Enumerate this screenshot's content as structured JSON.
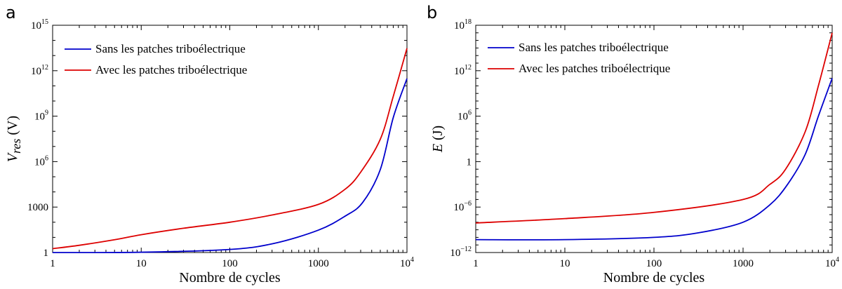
{
  "chart_data": [
    {
      "panel": "a",
      "type": "line",
      "xlabel": "Nombre de cycles",
      "ylabel_main": "V",
      "ylabel_sub": "res",
      "ylabel_unit": "(V)",
      "x_scale": "log",
      "y_scale": "log",
      "xlim": [
        1,
        10000
      ],
      "ylim": [
        1,
        1000000000000000.0
      ],
      "xticks": [
        {
          "value": 1,
          "base": "1",
          "sup": ""
        },
        {
          "value": 10,
          "base": "10",
          "sup": ""
        },
        {
          "value": 100,
          "base": "100",
          "sup": ""
        },
        {
          "value": 1000,
          "base": "1000",
          "sup": ""
        },
        {
          "value": 10000,
          "base": "10",
          "sup": "4"
        }
      ],
      "yticks": [
        {
          "value": 1,
          "base": "1",
          "sup": ""
        },
        {
          "value": 1000,
          "base": "1000",
          "sup": ""
        },
        {
          "value": 1000000.0,
          "base": "10",
          "sup": "6"
        },
        {
          "value": 1000000000.0,
          "base": "10",
          "sup": "9"
        },
        {
          "value": 1000000000000.0,
          "base": "10",
          "sup": "12"
        },
        {
          "value": 1000000000000000.0,
          "base": "10",
          "sup": "15"
        }
      ],
      "legend_position": "top-left",
      "series": [
        {
          "name": "Sans les patches triboélectrique",
          "color": "#0000cc",
          "x": [
            1,
            10,
            100,
            316,
            1000,
            2000,
            3160,
            5000,
            7000,
            10000
          ],
          "y": [
            1.0,
            1.05,
            1.6,
            4,
            30,
            250,
            2000,
            300000.0,
            800000000.0,
            300000000000.0
          ]
        },
        {
          "name": "Avec les patches triboélectrique",
          "color": "#dd0000",
          "x": [
            1,
            2,
            5,
            10,
            30,
            100,
            300,
            1000,
            2000,
            3000,
            5000,
            7000,
            10000
          ],
          "y": [
            1.8,
            3,
            7,
            15,
            40,
            100,
            300,
            1500,
            15000,
            200000.0,
            30000000.0,
            20000000000.0,
            30000000000000.0
          ]
        }
      ]
    },
    {
      "panel": "b",
      "type": "line",
      "xlabel": "Nombre de cycles",
      "ylabel_main": "E",
      "ylabel_sub": "",
      "ylabel_unit": "(J)",
      "x_scale": "log",
      "y_scale": "log",
      "xlim": [
        1,
        10000
      ],
      "ylim": [
        1e-12,
        1e+18
      ],
      "xticks": [
        {
          "value": 1,
          "base": "1",
          "sup": ""
        },
        {
          "value": 10,
          "base": "10",
          "sup": ""
        },
        {
          "value": 100,
          "base": "100",
          "sup": ""
        },
        {
          "value": 1000,
          "base": "1000",
          "sup": ""
        },
        {
          "value": 10000,
          "base": "10",
          "sup": "4"
        }
      ],
      "yticks": [
        {
          "value": 1e-12,
          "base": "10",
          "sup": "−12"
        },
        {
          "value": 1e-06,
          "base": "10",
          "sup": "−6"
        },
        {
          "value": 1,
          "base": "1",
          "sup": ""
        },
        {
          "value": 1000000.0,
          "base": "10",
          "sup": "6"
        },
        {
          "value": 1000000000000.0,
          "base": "10",
          "sup": "12"
        },
        {
          "value": 1e+18,
          "base": "10",
          "sup": "18"
        }
      ],
      "legend_position": "top-left",
      "series": [
        {
          "name": "Sans les patches triboélectrique",
          "color": "#0000cc",
          "x": [
            1,
            10,
            100,
            316,
            1000,
            2000,
            3160,
            5000,
            7000,
            10000
          ],
          "y": [
            5e-11,
            5e-11,
            1e-10,
            4e-10,
            1e-08,
            2e-06,
            0.001,
            10,
            1000000.0,
            100000000000.0
          ]
        },
        {
          "name": "Avec les patches triboélectrique",
          "color": "#dd0000",
          "x": [
            1,
            10,
            100,
            1000,
            2000,
            3000,
            5000,
            7000,
            10000
          ],
          "y": [
            8e-09,
            3e-08,
            2e-07,
            1e-05,
            0.001,
            0.1,
            10000.0,
            10000000000.0,
            1e+17
          ]
        }
      ]
    }
  ]
}
